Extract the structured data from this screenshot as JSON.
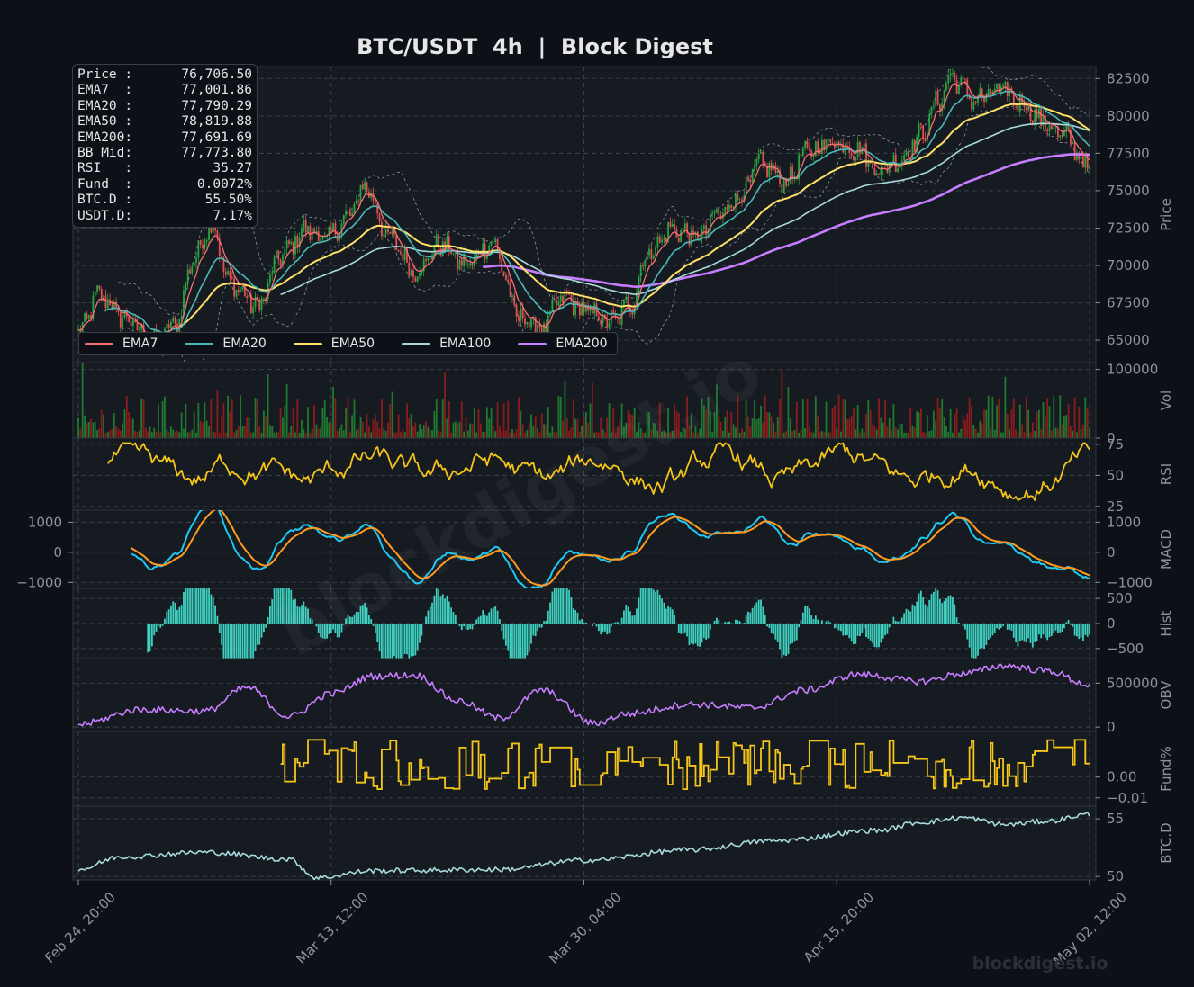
{
  "chart_data": {
    "type": "line",
    "title": "BTC/USDT  4h  |  Block Digest",
    "watermark": "blockdigest.io",
    "footer_brand": "blockdigest.io",
    "x_tick_labels": [
      "Feb 24, 20:00",
      "Mar 13, 12:00",
      "Mar 30, 04:00",
      "Apr 15, 20:00",
      "May 02, 12:00"
    ],
    "info_box": [
      {
        "label": "Price :",
        "value": "76,706.50"
      },
      {
        "label": "EMA7  :",
        "value": "77,001.86"
      },
      {
        "label": "EMA20 :",
        "value": "77,790.29"
      },
      {
        "label": "EMA50 :",
        "value": "78,819.88"
      },
      {
        "label": "EMA200:",
        "value": "77,691.69"
      },
      {
        "label": "BB Mid:",
        "value": "77,773.80"
      },
      {
        "label": "RSI   :",
        "value": "35.27"
      },
      {
        "label": "Fund  :",
        "value": "0.0072%"
      },
      {
        "label": "BTC.D :",
        "value": "55.50%"
      },
      {
        "label": "USDT.D:",
        "value": "7.17%"
      }
    ],
    "colors": {
      "background": "#0d1117",
      "panel": "#161b22",
      "grid": "#3d434b",
      "text": "#e6e6e6",
      "axis_text": "#8b949e",
      "candle_up": "#26a641",
      "candle_down": "#e05252",
      "ema7": "#f47174",
      "ema20": "#4bb8b8",
      "ema50": "#ffe066",
      "ema100": "#a8dadc",
      "ema200": "#c77dff",
      "bb": "#8b949e",
      "vol_up": "#1f7a30",
      "vol_down": "#8b1c1c",
      "rsi": "#f5c518",
      "macd": "#1ec8f0",
      "signal": "#ff9a1f",
      "hist": "#3fd1c0",
      "obv": "#c77dff",
      "fund": "#f5c518",
      "btcd": "#a8dadc"
    },
    "panels": [
      {
        "id": "price",
        "ylabel": "Price",
        "ylim": [
          63500,
          83300
        ],
        "yticks": [
          "82500",
          "80000",
          "77500",
          "75000",
          "72500",
          "70000",
          "67500",
          "65000"
        ],
        "ytick_values": [
          82500,
          80000,
          77500,
          75000,
          72500,
          70000,
          67500,
          65000
        ]
      },
      {
        "id": "vol",
        "ylabel": "Vol",
        "ylim": [
          0,
          110000
        ],
        "yticks": [
          "100000",
          "0"
        ],
        "ytick_values": [
          100000,
          0
        ]
      },
      {
        "id": "rsi",
        "ylabel": "RSI",
        "ylim": [
          22,
          80
        ],
        "yticks": [
          "75",
          "50",
          "25"
        ],
        "ytick_values": [
          75,
          50,
          25
        ]
      },
      {
        "id": "macd",
        "ylabel": "MACD",
        "ylim": [
          -1200,
          1400
        ],
        "yticks": [
          "1000",
          "0",
          "−1000"
        ],
        "ytick_values": [
          1000,
          0,
          -1000
        ],
        "left_yticks": [
          "1000",
          "0",
          "−1000"
        ]
      },
      {
        "id": "hist",
        "ylabel": "Hist",
        "ylim": [
          -700,
          700
        ],
        "yticks": [
          "500",
          "0",
          "−500"
        ],
        "ytick_values": [
          500,
          0,
          -500
        ]
      },
      {
        "id": "obv",
        "ylabel": "OBV",
        "ylim": [
          -50000,
          780000
        ],
        "yticks": [
          "500000",
          "0"
        ],
        "ytick_values": [
          500000,
          0
        ]
      },
      {
        "id": "fund",
        "ylabel": "Fund%",
        "ylim": [
          -0.014,
          0.022
        ],
        "yticks": [
          "0.00",
          "−0.01"
        ],
        "ytick_values": [
          0,
          -0.01
        ]
      },
      {
        "id": "btcd",
        "ylabel": "BTC.D",
        "ylim": [
          49.7,
          56.1
        ],
        "yticks": [
          "55",
          "50"
        ],
        "ytick_values": [
          55,
          50
        ]
      }
    ],
    "legend": [
      {
        "name": "EMA7",
        "color": "#f47174"
      },
      {
        "name": "EMA20",
        "color": "#4bb8b8"
      },
      {
        "name": "EMA50",
        "color": "#ffe066"
      },
      {
        "name": "EMA100",
        "color": "#a8dadc"
      },
      {
        "name": "EMA200",
        "color": "#c77dff"
      }
    ],
    "price_path": [
      [
        0,
        65500
      ],
      [
        10,
        68000
      ],
      [
        22,
        66500
      ],
      [
        35,
        64800
      ],
      [
        46,
        66000
      ],
      [
        55,
        70500
      ],
      [
        63,
        72800
      ],
      [
        72,
        68800
      ],
      [
        85,
        67300
      ],
      [
        97,
        70800
      ],
      [
        108,
        72400
      ],
      [
        118,
        71800
      ],
      [
        128,
        73200
      ],
      [
        136,
        75300
      ],
      [
        148,
        71800
      ],
      [
        160,
        69600
      ],
      [
        172,
        71400
      ],
      [
        184,
        70000
      ],
      [
        196,
        71500
      ],
      [
        210,
        66500
      ],
      [
        220,
        65800
      ],
      [
        230,
        67800
      ],
      [
        242,
        66900
      ],
      [
        253,
        66200
      ],
      [
        262,
        67400
      ],
      [
        270,
        70800
      ],
      [
        282,
        72400
      ],
      [
        294,
        71900
      ],
      [
        304,
        73400
      ],
      [
        314,
        74700
      ],
      [
        324,
        76800
      ],
      [
        336,
        75600
      ],
      [
        346,
        77600
      ],
      [
        358,
        78300
      ],
      [
        370,
        77800
      ],
      [
        380,
        76300
      ],
      [
        390,
        77100
      ],
      [
        400,
        78700
      ],
      [
        408,
        80900
      ],
      [
        414,
        82600
      ],
      [
        426,
        81100
      ],
      [
        438,
        81700
      ],
      [
        448,
        80900
      ],
      [
        458,
        79600
      ],
      [
        468,
        78600
      ],
      [
        480,
        76600
      ]
    ],
    "ema_start": {
      "ema7": 0,
      "ema20": 12,
      "ema50": 48,
      "ema100": 96,
      "ema200": 192
    },
    "series_spec": {
      "n": 481,
      "rsi_range": [
        30,
        76
      ],
      "macd_range": [
        -900,
        1350
      ],
      "obv_path": [
        [
          0,
          30000
        ],
        [
          30,
          200000
        ],
        [
          60,
          180000
        ],
        [
          80,
          450000
        ],
        [
          100,
          120000
        ],
        [
          120,
          380000
        ],
        [
          140,
          580000
        ],
        [
          160,
          590000
        ],
        [
          180,
          300000
        ],
        [
          200,
          100000
        ],
        [
          220,
          420000
        ],
        [
          245,
          40000
        ],
        [
          260,
          150000
        ],
        [
          290,
          260000
        ],
        [
          320,
          220000
        ],
        [
          345,
          420000
        ],
        [
          370,
          600000
        ],
        [
          400,
          520000
        ],
        [
          420,
          610000
        ],
        [
          440,
          700000
        ],
        [
          460,
          640000
        ],
        [
          480,
          480000
        ]
      ],
      "fund_start": 96,
      "fund_range": [
        -0.012,
        0.02
      ],
      "btcd_path": [
        [
          0,
          50.6
        ],
        [
          20,
          51.7
        ],
        [
          60,
          52.1
        ],
        [
          100,
          51.5
        ],
        [
          113,
          49.9
        ],
        [
          140,
          50.5
        ],
        [
          200,
          50.6
        ],
        [
          240,
          51.4
        ],
        [
          290,
          52.3
        ],
        [
          330,
          53.1
        ],
        [
          380,
          54.0
        ],
        [
          400,
          54.7
        ],
        [
          420,
          55.1
        ],
        [
          440,
          54.5
        ],
        [
          460,
          54.8
        ],
        [
          480,
          55.4
        ]
      ]
    }
  }
}
